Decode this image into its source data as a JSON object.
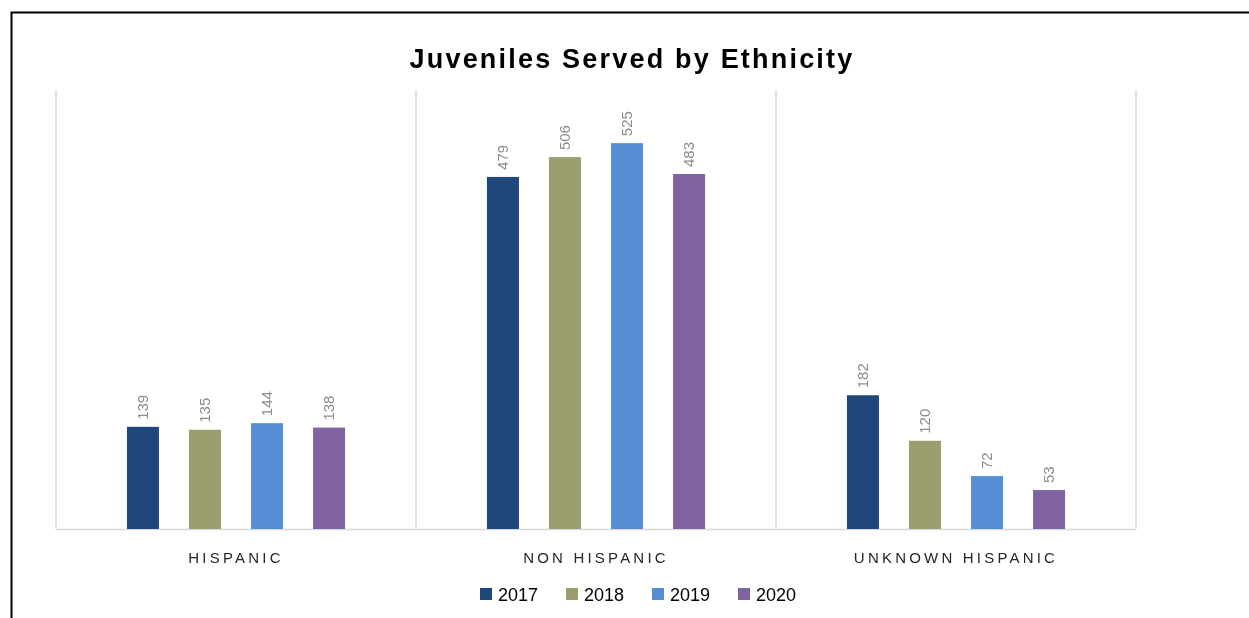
{
  "chart_data": {
    "type": "bar",
    "title": "Juveniles Served by Ethnicity",
    "categories": [
      "HISPANIC",
      "NON HISPANIC",
      "UNKNOWN HISPANIC"
    ],
    "series": [
      {
        "name": "2017",
        "color": "#1f477a",
        "values": [
          139,
          479,
          182
        ]
      },
      {
        "name": "2018",
        "color": "#9b9d6e",
        "values": [
          135,
          506,
          120
        ]
      },
      {
        "name": "2019",
        "color": "#558ed5",
        "values": [
          144,
          525,
          72
        ]
      },
      {
        "name": "2020",
        "color": "#8064a2",
        "values": [
          138,
          483,
          53
        ]
      }
    ],
    "ylim": [
      0,
      600
    ],
    "data_labels": true,
    "grid": "x",
    "legend": "bottom",
    "tick_labels": "x"
  }
}
